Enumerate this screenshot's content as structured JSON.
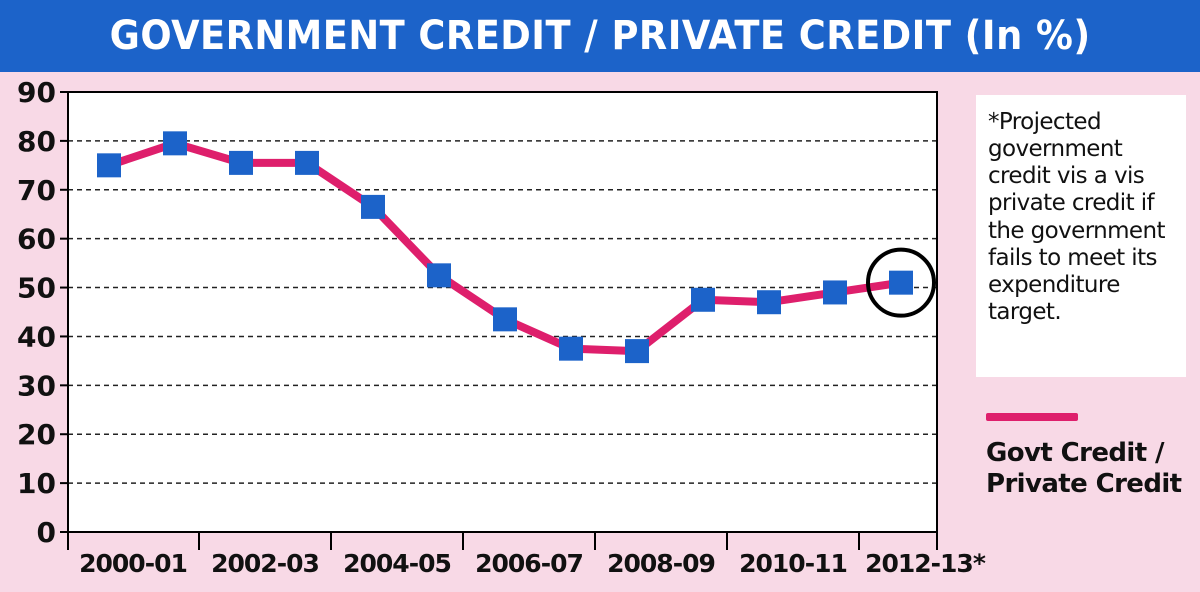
{
  "chart_data": {
    "type": "line",
    "title": "GOVERNMENT CREDIT / PRIVATE CREDIT (In %)",
    "categories": [
      "2000-01",
      "2002-03",
      "2004-05",
      "2006-07",
      "2008-09",
      "2010-11",
      "2012-13*"
    ],
    "x": [
      "2000-01",
      "2001-02",
      "2002-03",
      "2003-04",
      "2004-05",
      "2005-06",
      "2006-07",
      "2007-08",
      "2008-09",
      "2009-10",
      "2010-11",
      "2011-12",
      "2012-13*"
    ],
    "series": [
      {
        "name": "Govt Credit / Private Credit",
        "values": [
          75,
          79.5,
          75.5,
          75.5,
          66.5,
          52.5,
          43.5,
          37.5,
          37,
          47.5,
          47,
          49,
          51
        ]
      }
    ],
    "yticks": [
      0,
      10,
      20,
      30,
      40,
      50,
      60,
      70,
      80,
      90
    ],
    "ylim": [
      0,
      90
    ],
    "grid": "horizontal dashed",
    "highlight": "2012-13*",
    "note": "*Projected government credit vis a vis private credit if the government fails to meet its expenditure target.",
    "legend_position": "right",
    "colors": {
      "line": "#de1f6c",
      "marker": "#1c63c9",
      "background": "#f8d9e6",
      "title_bar": "#1c63c9"
    }
  }
}
